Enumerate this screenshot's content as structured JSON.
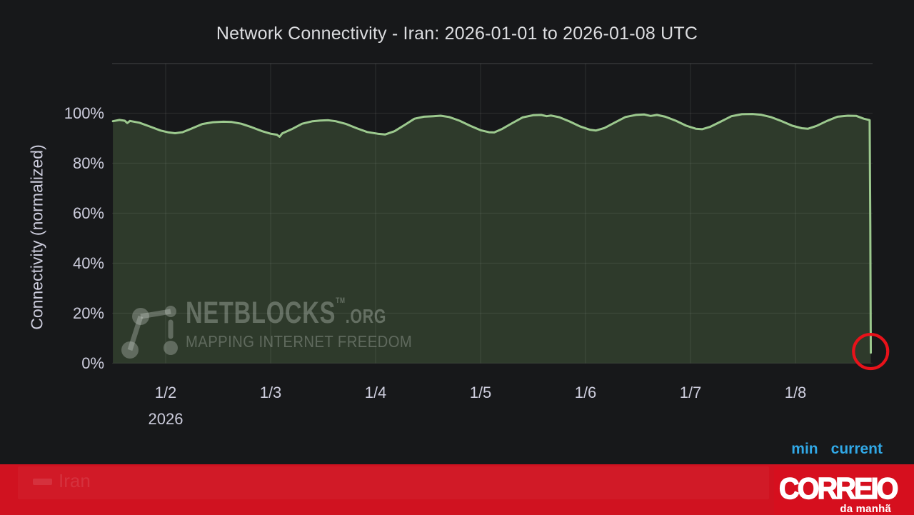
{
  "title": "Network Connectivity - Iran: 2026-01-01 to 2026-01-08 UTC",
  "legend": {
    "min_label": "min",
    "current_label": "current",
    "series_label": "Iran"
  },
  "watermark": {
    "brand": "NETBLOCKS",
    "tm": "TM",
    "suffix": ".ORG",
    "tagline": "MAPPING INTERNET FREEDOM"
  },
  "attribution": {
    "name": "CORREIO",
    "sub": "da manhã"
  },
  "colors": {
    "background": "#17181a",
    "line_green": "#9cc98e",
    "fill_green": "rgba(138,196,116,0.20)",
    "grid": "rgba(255,255,255,0.08)",
    "frame": "rgba(255,255,255,0.13)",
    "text_gray": "#ccccdc",
    "legend_header_blue": "#31a8e6",
    "banner_red": "#d01220",
    "logo_red": "#d60f1e",
    "annotation_red": "#e8121a"
  },
  "chart_data": {
    "type": "area",
    "title": "Network Connectivity - Iran: 2026-01-01 to 2026-01-08 UTC",
    "ylabel": "Connectivity (normalized)",
    "xlabel": "",
    "grid": true,
    "x_axis": {
      "unit": "days since 2026-01-01 00:00 UTC",
      "range_days": [
        0.497,
        7.72
      ],
      "tick_days": [
        1,
        2,
        3,
        4,
        5,
        6,
        7
      ],
      "tick_labels": [
        "1/2",
        "1/3",
        "1/4",
        "1/5",
        "1/6",
        "1/7",
        "1/8"
      ],
      "year_label": "2026"
    },
    "y_axis": {
      "unit": "percent",
      "range": [
        0,
        119
      ],
      "tick_values": [
        0,
        20,
        40,
        60,
        80,
        100
      ],
      "tick_labels": [
        "0%",
        "20%",
        "40%",
        "60%",
        "80%",
        "100%"
      ]
    },
    "legend": {
      "position": "bottom",
      "calc_headers": [
        "min",
        "current"
      ],
      "series_label": "Iran"
    },
    "series": [
      {
        "name": "Iran",
        "points": [
          [
            0.497,
            96.8
          ],
          [
            0.56,
            97.3
          ],
          [
            0.61,
            97.0
          ],
          [
            0.635,
            96.1
          ],
          [
            0.66,
            96.9
          ],
          [
            0.75,
            96.2
          ],
          [
            0.85,
            94.7
          ],
          [
            0.95,
            93.1
          ],
          [
            1.03,
            92.3
          ],
          [
            1.09,
            92.0
          ],
          [
            1.16,
            92.4
          ],
          [
            1.25,
            93.9
          ],
          [
            1.35,
            95.7
          ],
          [
            1.45,
            96.4
          ],
          [
            1.55,
            96.6
          ],
          [
            1.63,
            96.5
          ],
          [
            1.72,
            95.8
          ],
          [
            1.82,
            94.4
          ],
          [
            1.92,
            92.8
          ],
          [
            2.0,
            91.8
          ],
          [
            2.06,
            91.4
          ],
          [
            2.085,
            90.6
          ],
          [
            2.11,
            91.9
          ],
          [
            2.2,
            93.6
          ],
          [
            2.3,
            95.8
          ],
          [
            2.4,
            96.8
          ],
          [
            2.47,
            97.1
          ],
          [
            2.55,
            97.2
          ],
          [
            2.62,
            96.8
          ],
          [
            2.72,
            95.7
          ],
          [
            2.82,
            94.0
          ],
          [
            2.92,
            92.5
          ],
          [
            3.02,
            91.8
          ],
          [
            3.09,
            91.5
          ],
          [
            3.18,
            92.8
          ],
          [
            3.28,
            95.4
          ],
          [
            3.37,
            97.8
          ],
          [
            3.46,
            98.6
          ],
          [
            3.55,
            98.8
          ],
          [
            3.62,
            99.0
          ],
          [
            3.7,
            98.5
          ],
          [
            3.8,
            97.0
          ],
          [
            3.9,
            95.0
          ],
          [
            4.0,
            93.2
          ],
          [
            4.08,
            92.4
          ],
          [
            4.13,
            92.3
          ],
          [
            4.2,
            93.6
          ],
          [
            4.3,
            96.0
          ],
          [
            4.4,
            98.3
          ],
          [
            4.5,
            99.2
          ],
          [
            4.58,
            99.3
          ],
          [
            4.63,
            98.8
          ],
          [
            4.67,
            99.1
          ],
          [
            4.75,
            98.4
          ],
          [
            4.85,
            96.7
          ],
          [
            4.95,
            94.7
          ],
          [
            5.04,
            93.4
          ],
          [
            5.1,
            93.1
          ],
          [
            5.18,
            94.1
          ],
          [
            5.28,
            96.3
          ],
          [
            5.38,
            98.5
          ],
          [
            5.48,
            99.3
          ],
          [
            5.56,
            99.5
          ],
          [
            5.62,
            98.9
          ],
          [
            5.68,
            99.3
          ],
          [
            5.76,
            98.6
          ],
          [
            5.86,
            97.0
          ],
          [
            5.96,
            95.0
          ],
          [
            6.05,
            93.8
          ],
          [
            6.11,
            93.6
          ],
          [
            6.19,
            94.6
          ],
          [
            6.29,
            96.7
          ],
          [
            6.39,
            98.8
          ],
          [
            6.49,
            99.6
          ],
          [
            6.59,
            99.7
          ],
          [
            6.67,
            99.4
          ],
          [
            6.77,
            98.4
          ],
          [
            6.87,
            96.8
          ],
          [
            6.97,
            95.0
          ],
          [
            7.06,
            94.0
          ],
          [
            7.12,
            93.8
          ],
          [
            7.2,
            94.9
          ],
          [
            7.3,
            96.9
          ],
          [
            7.4,
            98.6
          ],
          [
            7.5,
            99.0
          ],
          [
            7.58,
            98.9
          ],
          [
            7.65,
            97.8
          ],
          [
            7.7,
            97.3
          ],
          [
            7.707,
            97.2
          ],
          [
            7.713,
            55.0
          ],
          [
            7.718,
            4.2
          ]
        ]
      }
    ],
    "annotation": {
      "type": "circle",
      "x_day": 7.716,
      "value_percent": 4.7,
      "note": "red circle highlighting connectivity collapse at end of window"
    }
  }
}
